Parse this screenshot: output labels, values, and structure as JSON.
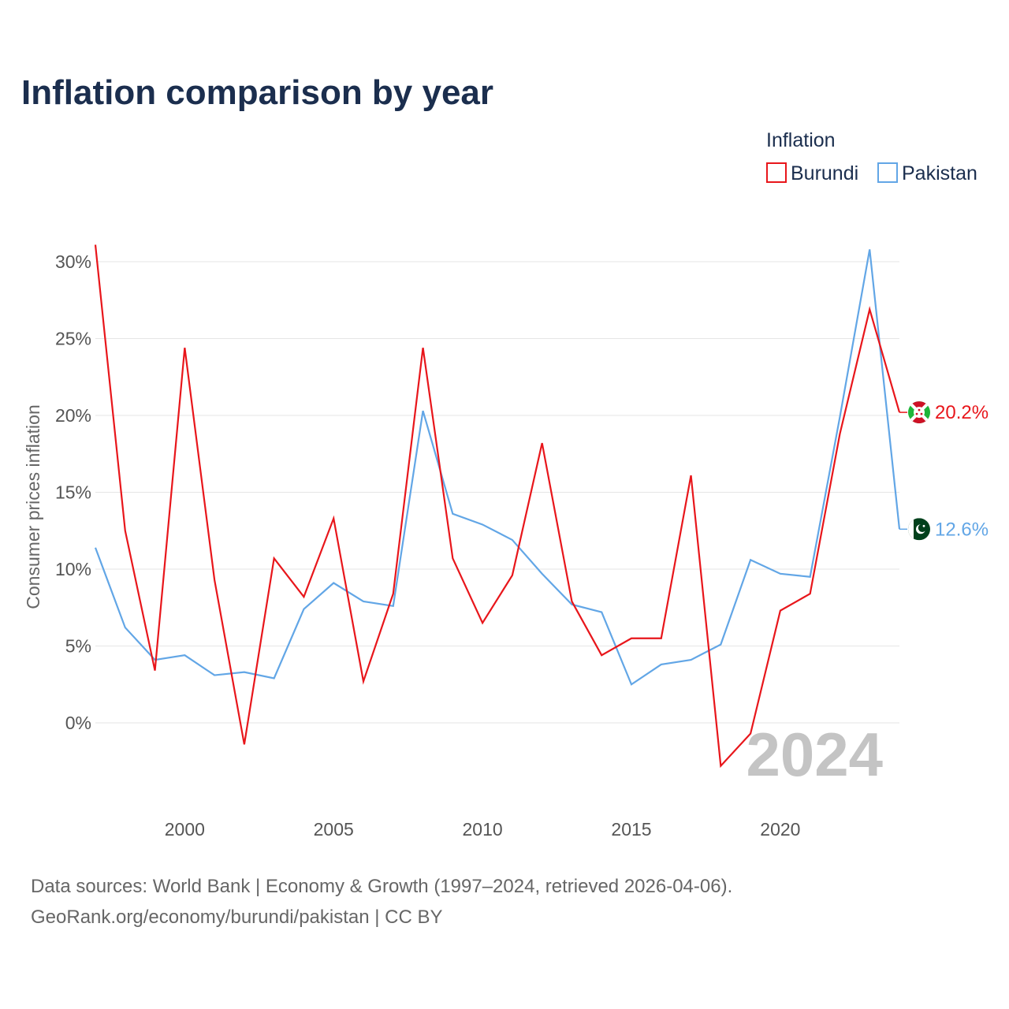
{
  "title": "Inflation comparison by year",
  "legend": {
    "title": "Inflation",
    "items": [
      {
        "name": "Burundi",
        "color": "#e8161b"
      },
      {
        "name": "Pakistan",
        "color": "#62a6e6"
      }
    ]
  },
  "current_year": "2024",
  "source": {
    "line1": "Data sources: World Bank | Economy & Growth (1997–2024, retrieved 2026-04-06).",
    "line2": "GeoRank.org/economy/burundi/pakistan | CC BY"
  },
  "chart_data": {
    "type": "line",
    "title": "Inflation comparison by year",
    "xlabel": "",
    "ylabel": "Consumer prices inflation",
    "xlim": [
      1997,
      2024
    ],
    "ylim": [
      -5,
      31
    ],
    "x_ticks": [
      2000,
      2005,
      2010,
      2015,
      2020
    ],
    "x_tick_labels": [
      "2000",
      "2005",
      "2010",
      "2015",
      "2020"
    ],
    "y_ticks": [
      0,
      5,
      10,
      15,
      20,
      25,
      30
    ],
    "y_tick_labels": [
      "0%",
      "5%",
      "10%",
      "15%",
      "20%",
      "25%",
      "30%"
    ],
    "grid": true,
    "x": [
      1997,
      1998,
      1999,
      2000,
      2001,
      2002,
      2003,
      2004,
      2005,
      2006,
      2007,
      2008,
      2009,
      2010,
      2011,
      2012,
      2013,
      2014,
      2015,
      2016,
      2017,
      2018,
      2019,
      2020,
      2021,
      2022,
      2023,
      2024
    ],
    "series": [
      {
        "name": "Burundi",
        "color": "#e8161b",
        "end_label": "20.2%",
        "flag_icon": "burundi-flag-icon",
        "values": [
          31.1,
          12.5,
          3.4,
          24.4,
          9.3,
          -1.4,
          10.7,
          8.2,
          13.3,
          2.7,
          8.4,
          24.4,
          10.7,
          6.5,
          9.6,
          18.2,
          7.9,
          4.4,
          5.5,
          5.5,
          16.1,
          -2.8,
          -0.7,
          7.3,
          8.4,
          18.8,
          26.9,
          20.2
        ]
      },
      {
        "name": "Pakistan",
        "color": "#62a6e6",
        "end_label": "12.6%",
        "flag_icon": "pakistan-flag-icon",
        "values": [
          11.4,
          6.2,
          4.1,
          4.4,
          3.1,
          3.3,
          2.9,
          7.4,
          9.1,
          7.9,
          7.6,
          20.3,
          13.6,
          12.9,
          11.9,
          9.7,
          7.7,
          7.2,
          2.5,
          3.8,
          4.1,
          5.1,
          10.6,
          9.7,
          9.5,
          19.9,
          30.8,
          12.6
        ]
      }
    ]
  }
}
